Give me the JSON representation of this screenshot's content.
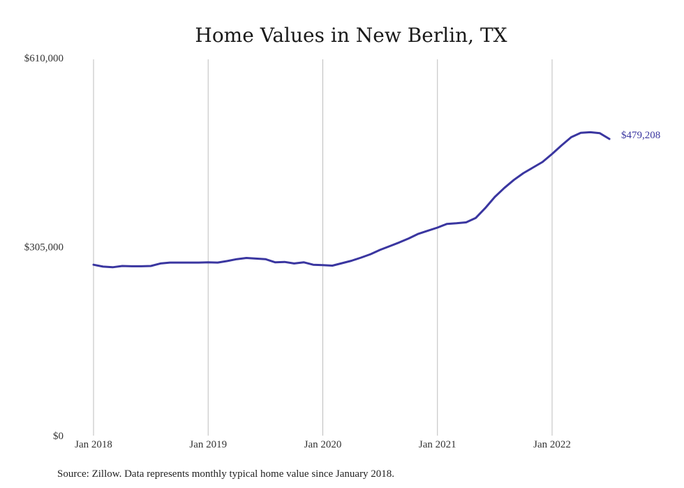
{
  "chart_data": {
    "type": "line",
    "title": "Home Values in New Berlin, TX",
    "xlabel": "",
    "ylabel": "",
    "x_ticks": [
      "Jan 2018",
      "Jan 2019",
      "Jan 2020",
      "Jan 2021",
      "Jan 2022"
    ],
    "y_ticks": [
      "$0",
      "$305,000",
      "$610,000"
    ],
    "ylim": [
      0,
      610000
    ],
    "grid": "vertical",
    "end_label": "$479,208",
    "series": [
      {
        "color": "#3a36a0",
        "x": [
          "2018-01",
          "2018-02",
          "2018-03",
          "2018-04",
          "2018-05",
          "2018-06",
          "2018-07",
          "2018-08",
          "2018-09",
          "2018-10",
          "2018-11",
          "2018-12",
          "2019-01",
          "2019-02",
          "2019-03",
          "2019-04",
          "2019-05",
          "2019-06",
          "2019-07",
          "2019-08",
          "2019-09",
          "2019-10",
          "2019-11",
          "2019-12",
          "2020-01",
          "2020-02",
          "2020-03",
          "2020-04",
          "2020-05",
          "2020-06",
          "2020-07",
          "2020-08",
          "2020-09",
          "2020-10",
          "2020-11",
          "2020-12",
          "2021-01",
          "2021-02",
          "2021-03",
          "2021-04",
          "2021-05",
          "2021-06",
          "2021-07",
          "2021-08",
          "2021-09",
          "2021-10",
          "2021-11",
          "2021-12",
          "2022-01",
          "2022-02",
          "2022-03",
          "2022-04",
          "2022-05",
          "2022-06",
          "2022-07"
        ],
        "values": [
          276000,
          273000,
          272000,
          274000,
          273500,
          273500,
          274000,
          278000,
          279500,
          279500,
          279500,
          279500,
          280000,
          279500,
          282000,
          285000,
          287000,
          286000,
          285000,
          280000,
          280500,
          278000,
          280000,
          276000,
          275500,
          274500,
          278500,
          282500,
          287500,
          293000,
          300000,
          306000,
          312000,
          318500,
          326000,
          331000,
          336000,
          342000,
          343000,
          344500,
          351500,
          367500,
          385500,
          400000,
          413000,
          424000,
          433000,
          442000,
          455000,
          469000,
          482000,
          489000,
          490000,
          488500,
          479208
        ]
      }
    ]
  },
  "footer": {
    "source": "Source: Zillow. Data represents monthly typical home value since January 2018."
  }
}
